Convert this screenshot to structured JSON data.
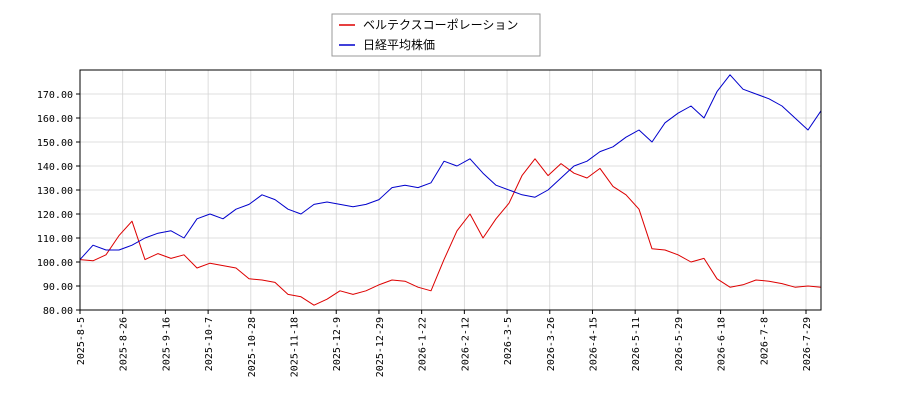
{
  "chart_data": {
    "type": "line",
    "title": "",
    "xlabel": "",
    "ylabel": "",
    "ylim": [
      80,
      180
    ],
    "grid": true,
    "legend_position": "top-center",
    "y_ticks": [
      "80.00",
      "90.00",
      "100.00",
      "110.00",
      "120.00",
      "130.00",
      "140.00",
      "150.00",
      "160.00",
      "170.00"
    ],
    "x_ticks": [
      "2025-8-5",
      "2025-8-26",
      "2025-9-16",
      "2025-10-7",
      "2025-10-28",
      "2025-11-18",
      "2025-12-9",
      "2025-12-29",
      "2026-1-22",
      "2026-2-12",
      "2026-3-5",
      "2026-3-26",
      "2026-4-15",
      "2026-5-11",
      "2026-5-29",
      "2026-6-18",
      "2026-7-8",
      "2026-7-29"
    ],
    "series": [
      {
        "name": "ベルテクスコーポレーション",
        "color": "#dd0000",
        "values": [
          101.0,
          100.5,
          103.0,
          111.0,
          117.0,
          101.0,
          103.5,
          101.5,
          103.0,
          97.5,
          99.5,
          98.5,
          97.5,
          93.0,
          92.5,
          91.5,
          86.5,
          85.5,
          82.0,
          84.5,
          88.0,
          86.5,
          88.0,
          90.5,
          92.5,
          92.0,
          89.5,
          88.0,
          101.0,
          113.0,
          120.0,
          110.0,
          118.0,
          124.5,
          136.0,
          143.0,
          136.0,
          141.0,
          137.0,
          135.0,
          139.0,
          131.5,
          128.0,
          122.0,
          105.5,
          105.0,
          103.0,
          100.0,
          101.5,
          93.0,
          89.5,
          90.5,
          92.5,
          92.0,
          91.0,
          89.5,
          90.0,
          89.5
        ]
      },
      {
        "name": "日経平均株価",
        "color": "#0000cc",
        "values": [
          101.0,
          107.0,
          105.0,
          105.0,
          107.0,
          110.0,
          112.0,
          113.0,
          110.0,
          118.0,
          120.0,
          118.0,
          122.0,
          124.0,
          128.0,
          126.0,
          122.0,
          120.0,
          124.0,
          125.0,
          124.0,
          123.0,
          124.0,
          126.0,
          131.0,
          132.0,
          131.0,
          133.0,
          142.0,
          140.0,
          143.0,
          137.0,
          132.0,
          130.0,
          128.0,
          127.0,
          130.0,
          135.0,
          140.0,
          142.0,
          146.0,
          148.0,
          152.0,
          155.0,
          150.0,
          158.0,
          162.0,
          165.0,
          160.0,
          171.0,
          178.0,
          172.0,
          170.0,
          168.0,
          165.0,
          160.0,
          155.0,
          163.0
        ]
      }
    ]
  }
}
